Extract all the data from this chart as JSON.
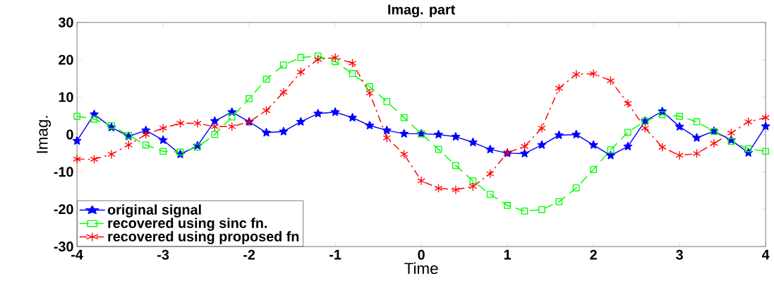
{
  "chart_data": {
    "type": "line",
    "title": "Imag. part",
    "xlabel": "Time",
    "ylabel": "Imag.",
    "x": [
      -4,
      -3.8,
      -3.6,
      -3.4,
      -3.2,
      -3,
      -2.8,
      -2.6,
      -2.4,
      -2.2,
      -2,
      -1.8,
      -1.6,
      -1.4,
      -1.2,
      -1,
      -0.8,
      -0.6,
      -0.4,
      -0.2,
      0,
      0.2,
      0.4,
      0.6,
      0.8,
      1,
      1.2,
      1.4,
      1.6,
      1.8,
      2,
      2.2,
      2.4,
      2.6,
      2.8,
      3,
      3.2,
      3.4,
      3.6,
      3.8,
      4
    ],
    "series": [
      {
        "name": "original signal",
        "color": "#0000ff",
        "marker": "star",
        "line_style": "solid",
        "values": [
          -1.7,
          5.4,
          1.9,
          -0.5,
          1.1,
          -1.5,
          -5.3,
          -3,
          3.6,
          6,
          3.4,
          0.5,
          0.8,
          3.4,
          5.6,
          6,
          4.5,
          2.4,
          1.1,
          0.2,
          0.2,
          0,
          -0.6,
          -2.1,
          -4,
          -5,
          -5.1,
          -2.8,
          -0.2,
          0,
          -2.8,
          -5.6,
          -3.2,
          3.6,
          6.2,
          2.1,
          -0.9,
          0.9,
          -1.5,
          -4.9,
          2.2
        ]
      },
      {
        "name": "recovered using sinc fn.",
        "color": "#00ff00",
        "marker": "square",
        "line_style": "dashed",
        "values": [
          4.9,
          4.1,
          2.4,
          -0.2,
          -2.8,
          -4.5,
          -4.7,
          -3.4,
          0,
          4.7,
          9.6,
          14.8,
          18.6,
          20.6,
          21,
          19.5,
          16.3,
          12.8,
          8.8,
          4.5,
          0.2,
          -4,
          -8.3,
          -12.4,
          -16,
          -19,
          -20.5,
          -20.1,
          -18,
          -14.3,
          -9.4,
          -4.1,
          0.6,
          3.6,
          5.3,
          4.9,
          3.4,
          0.8,
          -1.9,
          -3.8,
          -4.5
        ]
      },
      {
        "name": "recovered using proposed fn",
        "color": "#ff0000",
        "marker": "cross",
        "line_style": "dashdot",
        "values": [
          -6.6,
          -6.6,
          -5.3,
          -2.8,
          0,
          1.7,
          3,
          3,
          2.1,
          2.1,
          3.4,
          6.4,
          11.3,
          16.7,
          20.1,
          20.6,
          19.1,
          11.1,
          -0.9,
          -5.3,
          -12.4,
          -14.4,
          -14.8,
          -13.9,
          -10.5,
          -4.9,
          -3.2,
          1.7,
          12.4,
          16.1,
          16.3,
          14.4,
          8.3,
          1.7,
          -3.4,
          -5.6,
          -5.1,
          -2.4,
          0.4,
          3.4,
          4.5
        ]
      }
    ],
    "xlim": [
      -4,
      4
    ],
    "ylim": [
      -30,
      30
    ],
    "xticks": [
      -4,
      -3,
      -2,
      -1,
      0,
      1,
      2,
      3,
      4
    ],
    "yticks": [
      -30,
      -20,
      -10,
      0,
      10,
      20,
      30
    ],
    "grid": false,
    "legend": "bottom left"
  }
}
